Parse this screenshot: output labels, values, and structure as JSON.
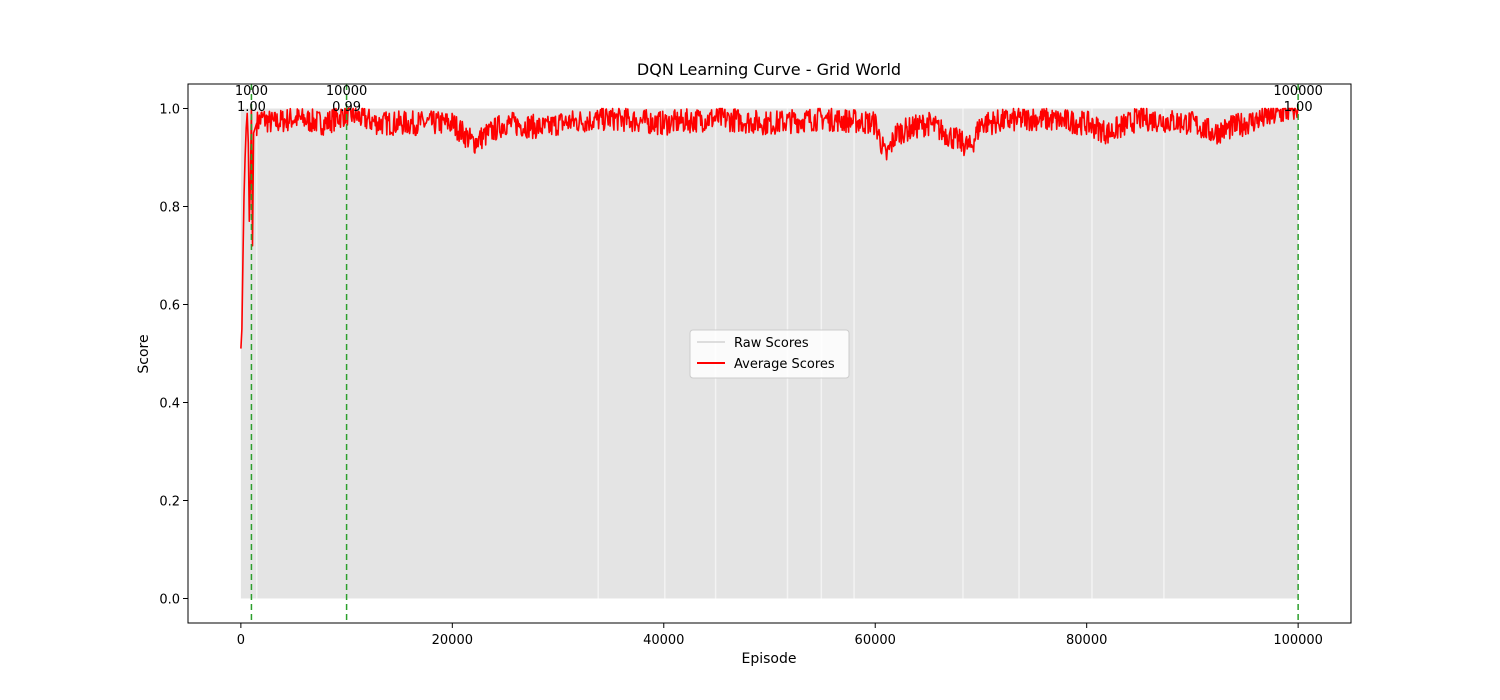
{
  "chart_data": {
    "type": "line",
    "title": "DQN Learning Curve - Grid World",
    "xlabel": "Episode",
    "ylabel": "Score",
    "xlim": [
      -5000,
      105000
    ],
    "ylim": [
      -0.05,
      1.05
    ],
    "x_ticks": [
      0,
      20000,
      40000,
      60000,
      80000,
      100000
    ],
    "x_tick_labels": [
      "0",
      "20000",
      "40000",
      "60000",
      "80000",
      "100000"
    ],
    "y_ticks": [
      0.0,
      0.2,
      0.4,
      0.6,
      0.8,
      1.0
    ],
    "y_tick_labels": [
      "0.0",
      "0.2",
      "0.4",
      "0.6",
      "0.8",
      "1.0"
    ],
    "grid": false,
    "legend": {
      "position": "center",
      "entries": [
        "Raw Scores",
        "Average Scores"
      ]
    },
    "series": [
      {
        "name": "Raw Scores",
        "color": "#d3d3d3",
        "description_values": [
          0,
          1
        ],
        "range": [
          0,
          100000
        ]
      },
      {
        "name": "Average Scores",
        "color": "#ff0000",
        "x": [
          0,
          100,
          200,
          300,
          400,
          500,
          600,
          700,
          800,
          900,
          1000,
          1100,
          1200,
          1500,
          2000,
          3000,
          5000,
          8000,
          10000,
          13000,
          20000,
          22000,
          25000,
          29000,
          30000,
          35000,
          40000,
          45000,
          50000,
          55000,
          60000,
          61000,
          62000,
          65000,
          69000,
          70000,
          75000,
          80000,
          82000,
          85000,
          90000,
          92000,
          95000,
          100000
        ],
        "values": [
          0.51,
          0.55,
          0.7,
          0.82,
          0.9,
          0.96,
          0.99,
          0.93,
          0.77,
          0.85,
          1.0,
          0.72,
          0.95,
          0.97,
          0.98,
          0.97,
          0.98,
          0.97,
          0.99,
          0.97,
          0.97,
          0.93,
          0.97,
          0.96,
          0.97,
          0.98,
          0.97,
          0.98,
          0.97,
          0.98,
          0.97,
          0.9,
          0.95,
          0.97,
          0.92,
          0.97,
          0.98,
          0.97,
          0.95,
          0.98,
          0.97,
          0.95,
          0.97,
          1.0
        ]
      }
    ],
    "vlines": [
      {
        "x": 1000,
        "color": "#2ca02c",
        "label_top": "1000",
        "label_bottom": "1.00"
      },
      {
        "x": 10000,
        "color": "#2ca02c",
        "label_top": "10000",
        "label_bottom": "0.99"
      },
      {
        "x": 100000,
        "color": "#2ca02c",
        "label_top": "100000",
        "label_bottom": "1.00"
      }
    ]
  }
}
